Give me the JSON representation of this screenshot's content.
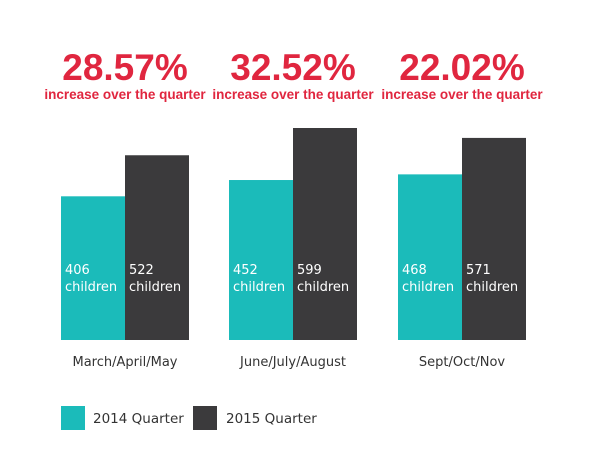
{
  "chart_data": {
    "type": "bar",
    "categories": [
      "March/April/May",
      "June/July/August",
      "Sept/Oct/Nov"
    ],
    "series": [
      {
        "name": "2014 Quarter",
        "values": [
          406,
          452,
          468
        ],
        "labels": [
          "406 children",
          "452 children",
          "468 children"
        ],
        "color": "#1bbbba"
      },
      {
        "name": "2015 Quarter",
        "values": [
          522,
          599,
          571
        ],
        "labels": [
          "522 children",
          "599 children",
          "571 children"
        ],
        "color": "#3b3a3c"
      }
    ],
    "annotations": [
      {
        "value": "28.57%",
        "text": "increase over the quarter"
      },
      {
        "value": "32.52%",
        "text": "increase over the quarter"
      },
      {
        "value": "22.02%",
        "text": "increase over the quarter"
      }
    ],
    "ylim": [
      0,
      700
    ],
    "grid": false,
    "legend_position": "bottom-left",
    "annotation_color": "#e0263f",
    "text_color": "#333333",
    "title": "",
    "xlabel": "",
    "ylabel": ""
  }
}
